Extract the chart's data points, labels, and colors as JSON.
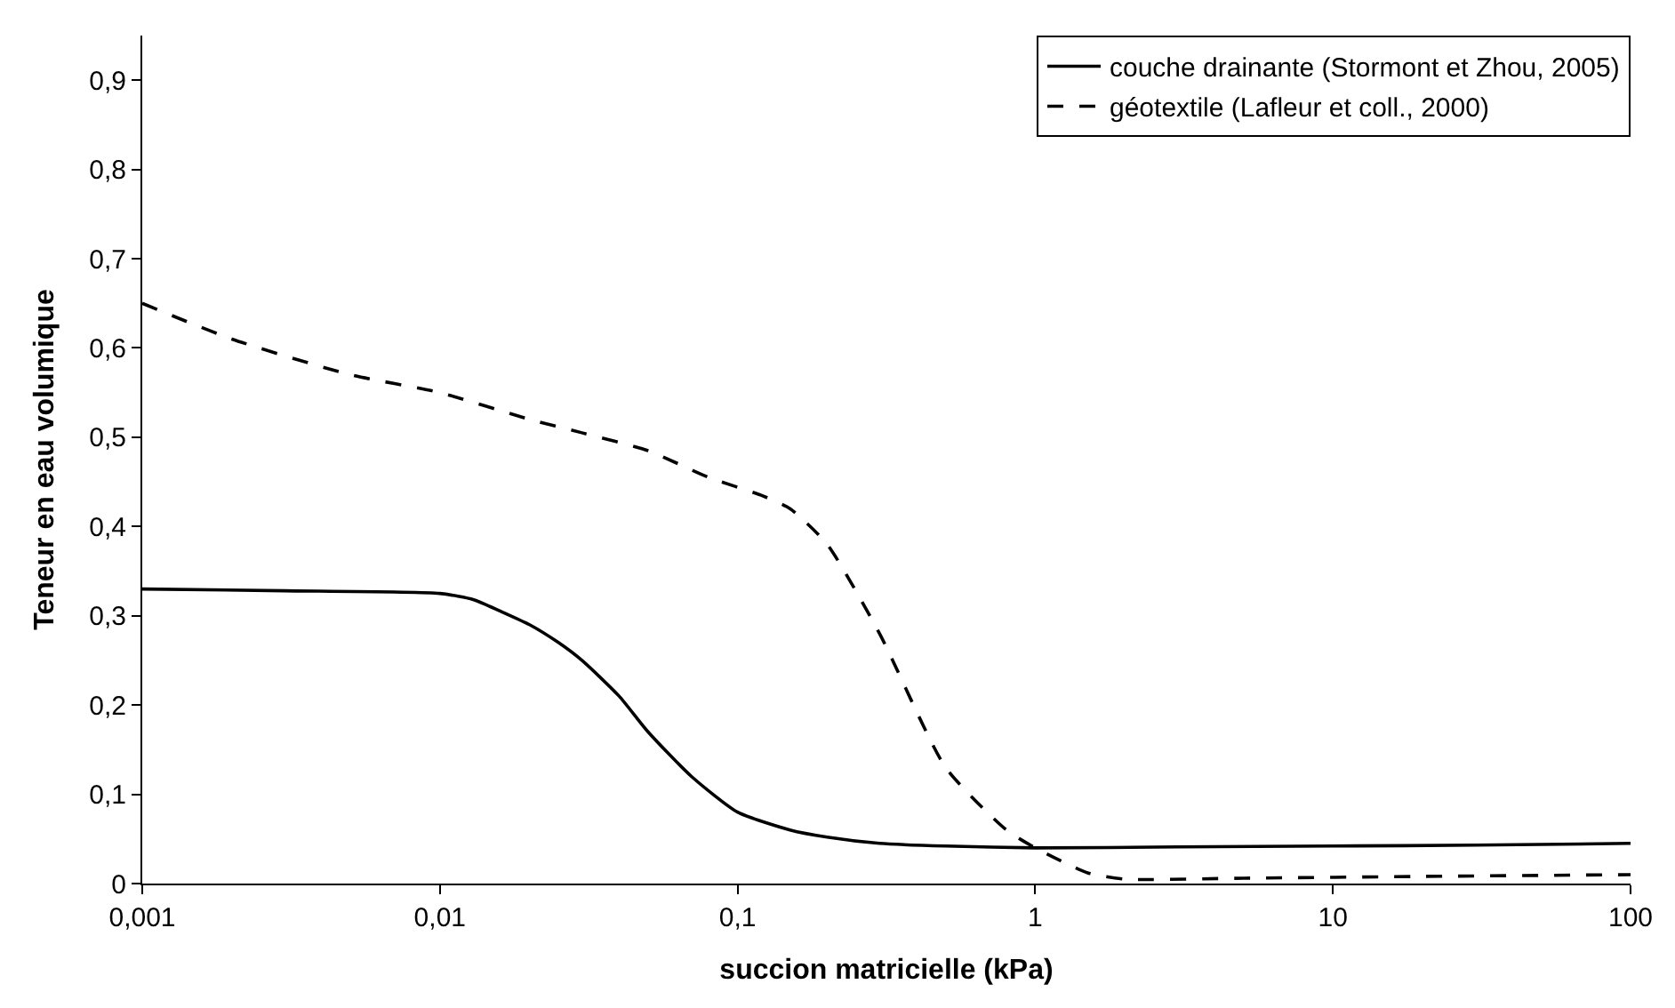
{
  "chart_data": {
    "type": "line",
    "xlabel": "succion matricielle (kPa)",
    "ylabel": "Teneur en eau volumique",
    "log": "x",
    "xlim": [
      0.001,
      100
    ],
    "xticks": [
      {
        "value": 0.001,
        "label": "0,001"
      },
      {
        "value": 0.01,
        "label": "0,01"
      },
      {
        "value": 0.1,
        "label": "0,1"
      },
      {
        "value": 1,
        "label": "1"
      },
      {
        "value": 10,
        "label": "10"
      },
      {
        "value": 100,
        "label": "100"
      }
    ],
    "ylim": [
      0,
      0.95
    ],
    "yticks": [
      {
        "value": 0,
        "label": "0"
      },
      {
        "value": 0.1,
        "label": "0,1"
      },
      {
        "value": 0.2,
        "label": "0,2"
      },
      {
        "value": 0.3,
        "label": "0,3"
      },
      {
        "value": 0.4,
        "label": "0,4"
      },
      {
        "value": 0.5,
        "label": "0,5"
      },
      {
        "value": 0.6,
        "label": "0,6"
      },
      {
        "value": 0.7,
        "label": "0,7"
      },
      {
        "value": 0.8,
        "label": "0,8"
      },
      {
        "value": 0.9,
        "label": "0,9"
      }
    ],
    "grid": false,
    "legend": "top right",
    "marker": "none",
    "series": [
      {
        "name": "couche drainante (Stormont et Zhou, 2005)",
        "color": "#000000",
        "line_style": "solid",
        "x": [
          0.001,
          0.003,
          0.01,
          0.013,
          0.016,
          0.02,
          0.025,
          0.03,
          0.04,
          0.05,
          0.07,
          0.1,
          0.15,
          0.2,
          0.3,
          0.5,
          1,
          3,
          10,
          30,
          100
        ],
        "values": [
          0.33,
          0.328,
          0.325,
          0.318,
          0.305,
          0.29,
          0.27,
          0.25,
          0.21,
          0.17,
          0.12,
          0.08,
          0.06,
          0.052,
          0.045,
          0.042,
          0.04,
          0.041,
          0.042,
          0.043,
          0.045
        ]
      },
      {
        "name": "géotextile (Lafleur et coll., 2000)",
        "color": "#000000",
        "line_style": "dashed",
        "x": [
          0.001,
          0.002,
          0.005,
          0.01,
          0.02,
          0.03,
          0.05,
          0.08,
          0.12,
          0.15,
          0.2,
          0.3,
          0.5,
          0.8,
          1,
          1.5,
          2,
          5,
          20,
          100
        ],
        "values": [
          0.65,
          0.61,
          0.57,
          0.55,
          0.52,
          0.505,
          0.485,
          0.455,
          0.435,
          0.42,
          0.38,
          0.28,
          0.13,
          0.06,
          0.04,
          0.012,
          0.005,
          0.006,
          0.008,
          0.01
        ]
      }
    ]
  }
}
